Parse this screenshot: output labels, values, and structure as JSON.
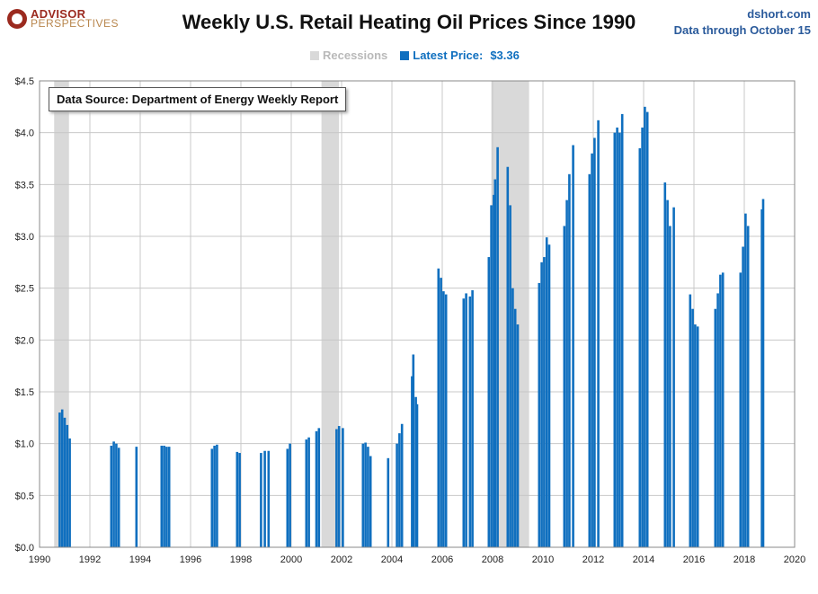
{
  "header": {
    "logo_line1": "ADVISOR",
    "logo_line2": "PERSPECTIVES",
    "title": "Weekly U.S. Retail Heating Oil Prices Since 1990",
    "source_site": "dshort.com",
    "data_through": "Data through October 15"
  },
  "legend": {
    "recessions_label": "Recessions",
    "latest_label": "Latest Price:",
    "latest_value": "$3.36"
  },
  "note": "Data Source: Department of Energy Weekly Report",
  "colors": {
    "bar": "#0f6fbf",
    "recession": "#d9d9d9",
    "grid": "#c8c8c8",
    "header_text": "#2a5a9b",
    "logo_red": "#9b2a1f"
  },
  "chart_data": {
    "type": "bar",
    "title": "Weekly U.S. Retail Heating Oil Prices Since 1990",
    "xlim": [
      1990,
      2020
    ],
    "ylim": [
      0,
      4.5
    ],
    "x_ticks": [
      "1990",
      "1992",
      "1994",
      "1996",
      "1998",
      "2000",
      "2002",
      "2004",
      "2006",
      "2008",
      "2010",
      "2012",
      "2014",
      "2016",
      "2018",
      "2020"
    ],
    "y_ticks": [
      "$0.0",
      "$0.5",
      "$1.0",
      "$1.5",
      "$2.0",
      "$2.5",
      "$3.0",
      "$3.5",
      "$4.0",
      "$4.5"
    ],
    "grid": true,
    "recessions": [
      [
        1990.58,
        1991.17
      ],
      [
        2001.2,
        2001.9
      ],
      [
        2007.95,
        2009.45
      ]
    ],
    "series": [
      {
        "name": "Latest Price",
        "points": [
          [
            1990.8,
            1.3
          ],
          [
            1990.9,
            1.33
          ],
          [
            1991.0,
            1.25
          ],
          [
            1991.1,
            1.18
          ],
          [
            1991.2,
            1.05
          ],
          [
            1992.85,
            0.98
          ],
          [
            1992.95,
            1.02
          ],
          [
            1993.05,
            1.0
          ],
          [
            1993.15,
            0.96
          ],
          [
            1993.85,
            0.97
          ],
          [
            1994.85,
            0.98
          ],
          [
            1994.95,
            0.98
          ],
          [
            1995.05,
            0.97
          ],
          [
            1995.15,
            0.97
          ],
          [
            1996.85,
            0.95
          ],
          [
            1996.95,
            0.98
          ],
          [
            1997.05,
            0.99
          ],
          [
            1997.85,
            0.92
          ],
          [
            1997.95,
            0.91
          ],
          [
            1998.8,
            0.91
          ],
          [
            1998.95,
            0.93
          ],
          [
            1999.1,
            0.93
          ],
          [
            1999.85,
            0.95
          ],
          [
            1999.95,
            1.0
          ],
          [
            2000.6,
            1.04
          ],
          [
            2000.7,
            1.06
          ],
          [
            2001.0,
            1.12
          ],
          [
            2001.1,
            1.15
          ],
          [
            2001.8,
            1.14
          ],
          [
            2001.9,
            1.17
          ],
          [
            2002.05,
            1.15
          ],
          [
            2002.85,
            1.0
          ],
          [
            2002.95,
            1.01
          ],
          [
            2003.05,
            0.97
          ],
          [
            2003.15,
            0.88
          ],
          [
            2003.85,
            0.86
          ],
          [
            2004.2,
            1.0
          ],
          [
            2004.3,
            1.1
          ],
          [
            2004.4,
            1.19
          ],
          [
            2004.8,
            1.65
          ],
          [
            2004.85,
            1.86
          ],
          [
            2004.95,
            1.45
          ],
          [
            2005.0,
            1.38
          ],
          [
            2005.85,
            2.69
          ],
          [
            2005.95,
            2.6
          ],
          [
            2006.05,
            2.47
          ],
          [
            2006.15,
            2.44
          ],
          [
            2006.85,
            2.4
          ],
          [
            2006.95,
            2.45
          ],
          [
            2007.1,
            2.42
          ],
          [
            2007.2,
            2.48
          ],
          [
            2007.85,
            2.8
          ],
          [
            2007.95,
            3.3
          ],
          [
            2008.05,
            3.4
          ],
          [
            2008.1,
            3.55
          ],
          [
            2008.2,
            3.86
          ],
          [
            2008.6,
            3.67
          ],
          [
            2008.7,
            3.3
          ],
          [
            2008.8,
            2.5
          ],
          [
            2008.9,
            2.3
          ],
          [
            2009.0,
            2.15
          ],
          [
            2009.85,
            2.55
          ],
          [
            2009.95,
            2.75
          ],
          [
            2010.05,
            2.8
          ],
          [
            2010.15,
            2.99
          ],
          [
            2010.25,
            2.92
          ],
          [
            2010.85,
            3.1
          ],
          [
            2010.95,
            3.35
          ],
          [
            2011.05,
            3.6
          ],
          [
            2011.2,
            3.88
          ],
          [
            2011.85,
            3.6
          ],
          [
            2011.95,
            3.8
          ],
          [
            2012.05,
            3.95
          ],
          [
            2012.2,
            4.12
          ],
          [
            2012.85,
            4.0
          ],
          [
            2012.95,
            4.05
          ],
          [
            2013.05,
            4.0
          ],
          [
            2013.15,
            4.18
          ],
          [
            2013.85,
            3.85
          ],
          [
            2013.95,
            4.05
          ],
          [
            2014.05,
            4.25
          ],
          [
            2014.15,
            4.2
          ],
          [
            2014.85,
            3.52
          ],
          [
            2014.95,
            3.35
          ],
          [
            2015.05,
            3.1
          ],
          [
            2015.2,
            3.28
          ],
          [
            2015.85,
            2.44
          ],
          [
            2015.95,
            2.3
          ],
          [
            2016.05,
            2.15
          ],
          [
            2016.15,
            2.13
          ],
          [
            2016.85,
            2.3
          ],
          [
            2016.95,
            2.45
          ],
          [
            2017.05,
            2.63
          ],
          [
            2017.15,
            2.65
          ],
          [
            2017.85,
            2.65
          ],
          [
            2017.95,
            2.9
          ],
          [
            2018.05,
            3.22
          ],
          [
            2018.15,
            3.1
          ],
          [
            2018.7,
            3.26
          ],
          [
            2018.75,
            3.36
          ]
        ]
      }
    ]
  }
}
